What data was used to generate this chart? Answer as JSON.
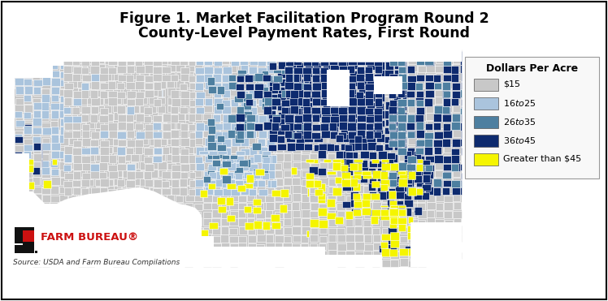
{
  "title_line1": "Figure 1. Market Facilitation Program Round 2",
  "title_line2": "County-Level Payment Rates, First Round",
  "title_fontsize": 12.5,
  "title_fontweight": "bold",
  "legend_title": "Dollars Per Acre",
  "legend_entries": [
    {
      "label": "$15",
      "color": "#c8c8c8"
    },
    {
      "label": "$16 to $25",
      "color": "#aac4dd"
    },
    {
      "label": "$26 to $35",
      "color": "#4d7fa0"
    },
    {
      "label": "$36 to $45",
      "color": "#0d2a6e"
    },
    {
      "label": "Greater than $45",
      "color": "#f5f500"
    }
  ],
  "source_text": "Source: USDA and Farm Bureau Compilations",
  "farm_bureau_text": "FARM BUREAU",
  "background_color": "#ffffff",
  "border_color": "#000000",
  "fig_width": 7.48,
  "fig_height": 3.71,
  "dpi": 100,
  "map_background": "#d0d0d0"
}
